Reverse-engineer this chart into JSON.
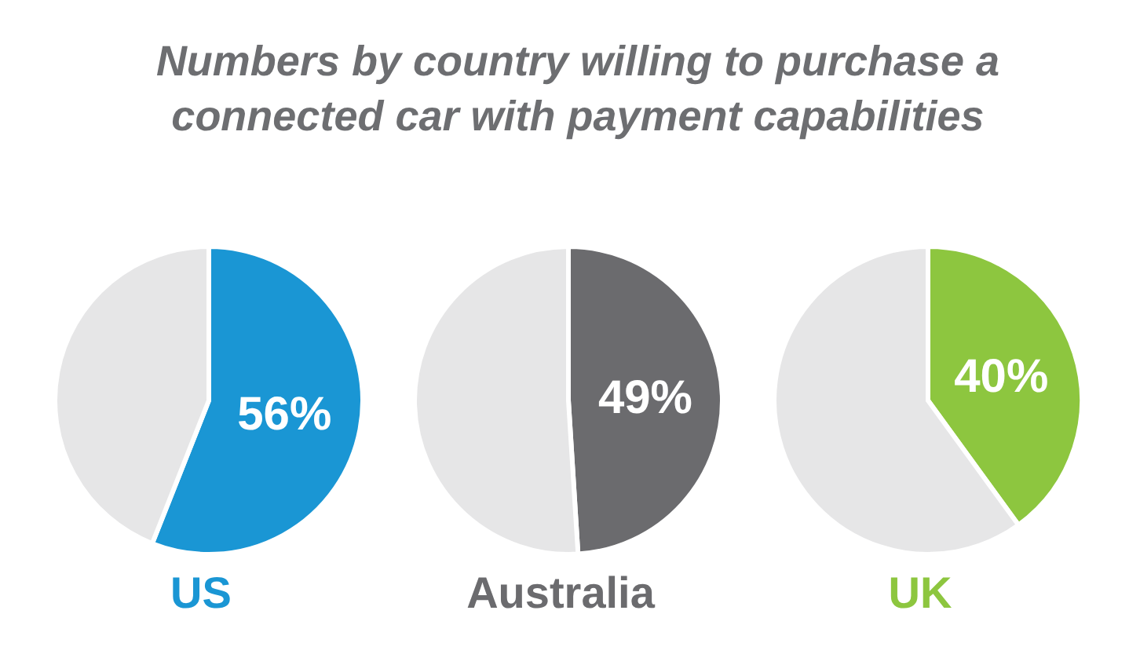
{
  "chart_data": [
    {
      "type": "pie",
      "title": "Numbers by country willing to purchase a connected car with payment capabilities",
      "xlabel": "US",
      "categories": [
        null,
        null
      ],
      "values": [
        56,
        44
      ],
      "colors": [
        "#1a96d4",
        "#e6e6e7"
      ],
      "value_labels": [
        "56%",
        null
      ]
    },
    {
      "type": "pie",
      "xlabel": "Australia",
      "categories": [
        null,
        null
      ],
      "values": [
        49,
        51
      ],
      "colors": [
        "#6b6b6e",
        "#e6e6e7"
      ],
      "value_labels": [
        "49%",
        null
      ]
    },
    {
      "type": "pie",
      "xlabel": "UK",
      "categories": [
        null,
        null
      ],
      "values": [
        40,
        60
      ],
      "colors": [
        "#8dc63f",
        "#e6e6e7"
      ],
      "value_labels": [
        "40%",
        null
      ]
    }
  ]
}
